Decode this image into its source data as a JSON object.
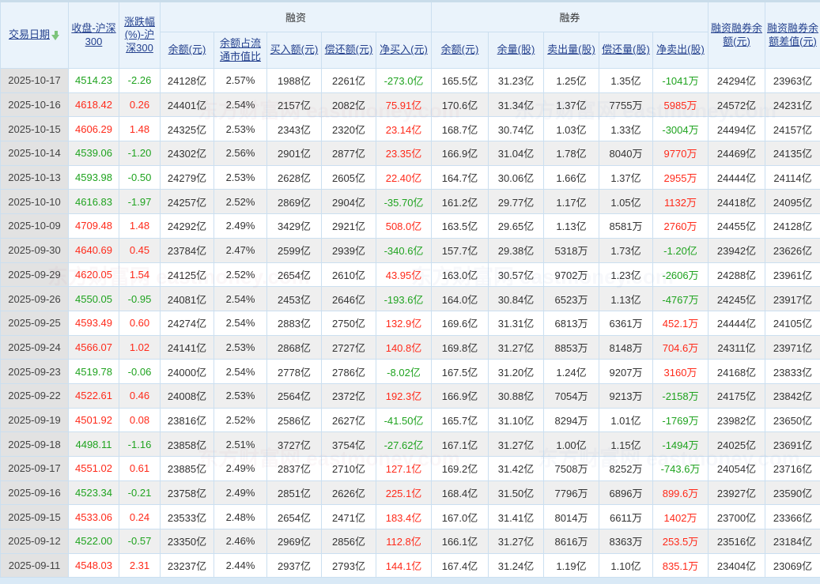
{
  "watermark": "东方财富网 eastmoney.com",
  "colors": {
    "up_red": "#ff2a1a",
    "down_green": "#1fa31f",
    "header_link": "#24418e",
    "header_bg": "#eaf3fb",
    "date_col_bg": "#e2e2e2",
    "alt_row_bg": "#efefef"
  },
  "table": {
    "groups": {
      "financing": "融资",
      "securities_lending": "融券"
    },
    "headers": {
      "date": "交易日期",
      "close": "收盘-沪深300",
      "change_pct": "涨跌幅(%)-沪深300",
      "rz_balance": "余额(元)",
      "rz_balance_ratio": "余额占流通市值比",
      "rz_buy": "买入额(元)",
      "rz_repay": "偿还额(元)",
      "rz_net_buy": "净买入(元)",
      "rq_balance": "余额(元)",
      "rq_volume": "余量(股)",
      "rq_sell_volume": "卖出量(股)",
      "rq_repay_volume": "偿还量(股)",
      "rq_net_sell": "净卖出(股)",
      "rzrq_balance": "融资融券余额(元)",
      "rzrq_balance_diff": "融资融券余额差值(元)"
    },
    "rows": [
      [
        "2025-10-17",
        "4514.23",
        "-2.26",
        "24128亿",
        "2.57%",
        "1988亿",
        "2261亿",
        "-273.0亿",
        "165.5亿",
        "31.23亿",
        "1.25亿",
        "1.35亿",
        "-1041万",
        "24294亿",
        "23963亿"
      ],
      [
        "2025-10-16",
        "4618.42",
        "0.26",
        "24401亿",
        "2.54%",
        "2157亿",
        "2082亿",
        "75.91亿",
        "170.6亿",
        "31.34亿",
        "1.37亿",
        "7755万",
        "5985万",
        "24572亿",
        "24231亿"
      ],
      [
        "2025-10-15",
        "4606.29",
        "1.48",
        "24325亿",
        "2.53%",
        "2343亿",
        "2320亿",
        "23.14亿",
        "168.7亿",
        "30.74亿",
        "1.03亿",
        "1.33亿",
        "-3004万",
        "24494亿",
        "24157亿"
      ],
      [
        "2025-10-14",
        "4539.06",
        "-1.20",
        "24302亿",
        "2.56%",
        "2901亿",
        "2877亿",
        "23.35亿",
        "166.9亿",
        "31.04亿",
        "1.78亿",
        "8040万",
        "9770万",
        "24469亿",
        "24135亿"
      ],
      [
        "2025-10-13",
        "4593.98",
        "-0.50",
        "24279亿",
        "2.53%",
        "2628亿",
        "2605亿",
        "22.40亿",
        "164.7亿",
        "30.06亿",
        "1.66亿",
        "1.37亿",
        "2955万",
        "24444亿",
        "24114亿"
      ],
      [
        "2025-10-10",
        "4616.83",
        "-1.97",
        "24257亿",
        "2.52%",
        "2869亿",
        "2904亿",
        "-35.70亿",
        "161.2亿",
        "29.77亿",
        "1.17亿",
        "1.05亿",
        "1132万",
        "24418亿",
        "24095亿"
      ],
      [
        "2025-10-09",
        "4709.48",
        "1.48",
        "24292亿",
        "2.49%",
        "3429亿",
        "2921亿",
        "508.0亿",
        "163.5亿",
        "29.65亿",
        "1.13亿",
        "8581万",
        "2760万",
        "24455亿",
        "24128亿"
      ],
      [
        "2025-09-30",
        "4640.69",
        "0.45",
        "23784亿",
        "2.47%",
        "2599亿",
        "2939亿",
        "-340.6亿",
        "157.7亿",
        "29.38亿",
        "5318万",
        "1.73亿",
        "-1.20亿",
        "23942亿",
        "23626亿"
      ],
      [
        "2025-09-29",
        "4620.05",
        "1.54",
        "24125亿",
        "2.52%",
        "2654亿",
        "2610亿",
        "43.95亿",
        "163.0亿",
        "30.57亿",
        "9702万",
        "1.23亿",
        "-2606万",
        "24288亿",
        "23961亿"
      ],
      [
        "2025-09-26",
        "4550.05",
        "-0.95",
        "24081亿",
        "2.54%",
        "2453亿",
        "2646亿",
        "-193.6亿",
        "164.0亿",
        "30.84亿",
        "6523万",
        "1.13亿",
        "-4767万",
        "24245亿",
        "23917亿"
      ],
      [
        "2025-09-25",
        "4593.49",
        "0.60",
        "24274亿",
        "2.54%",
        "2883亿",
        "2750亿",
        "132.9亿",
        "169.6亿",
        "31.31亿",
        "6813万",
        "6361万",
        "452.1万",
        "24444亿",
        "24105亿"
      ],
      [
        "2025-09-24",
        "4566.07",
        "1.02",
        "24141亿",
        "2.53%",
        "2868亿",
        "2727亿",
        "140.8亿",
        "169.8亿",
        "31.27亿",
        "8853万",
        "8148万",
        "704.6万",
        "24311亿",
        "23971亿"
      ],
      [
        "2025-09-23",
        "4519.78",
        "-0.06",
        "24000亿",
        "2.54%",
        "2778亿",
        "2786亿",
        "-8.02亿",
        "167.5亿",
        "31.20亿",
        "1.24亿",
        "9207万",
        "3160万",
        "24168亿",
        "23833亿"
      ],
      [
        "2025-09-22",
        "4522.61",
        "0.46",
        "24008亿",
        "2.53%",
        "2564亿",
        "2372亿",
        "192.3亿",
        "166.9亿",
        "30.88亿",
        "7054万",
        "9213万",
        "-2158万",
        "24175亿",
        "23842亿"
      ],
      [
        "2025-09-19",
        "4501.92",
        "0.08",
        "23816亿",
        "2.52%",
        "2586亿",
        "2627亿",
        "-41.50亿",
        "165.7亿",
        "31.10亿",
        "8294万",
        "1.01亿",
        "-1769万",
        "23982亿",
        "23650亿"
      ],
      [
        "2025-09-18",
        "4498.11",
        "-1.16",
        "23858亿",
        "2.51%",
        "3727亿",
        "3754亿",
        "-27.62亿",
        "167.1亿",
        "31.27亿",
        "1.00亿",
        "1.15亿",
        "-1494万",
        "24025亿",
        "23691亿"
      ],
      [
        "2025-09-17",
        "4551.02",
        "0.61",
        "23885亿",
        "2.49%",
        "2837亿",
        "2710亿",
        "127.1亿",
        "169.2亿",
        "31.42亿",
        "7508万",
        "8252万",
        "-743.6万",
        "24054亿",
        "23716亿"
      ],
      [
        "2025-09-16",
        "4523.34",
        "-0.21",
        "23758亿",
        "2.49%",
        "2851亿",
        "2626亿",
        "225.1亿",
        "168.4亿",
        "31.50亿",
        "7796万",
        "6896万",
        "899.6万",
        "23927亿",
        "23590亿"
      ],
      [
        "2025-09-15",
        "4533.06",
        "0.24",
        "23533亿",
        "2.48%",
        "2654亿",
        "2471亿",
        "183.4亿",
        "167.0亿",
        "31.41亿",
        "8014万",
        "6611万",
        "1402万",
        "23700亿",
        "23366亿"
      ],
      [
        "2025-09-12",
        "4522.00",
        "-0.57",
        "23350亿",
        "2.46%",
        "2969亿",
        "2856亿",
        "112.8亿",
        "166.1亿",
        "31.27亿",
        "8616万",
        "8363万",
        "253.5万",
        "23516亿",
        "23184亿"
      ],
      [
        "2025-09-11",
        "4548.03",
        "2.31",
        "23237亿",
        "2.44%",
        "2937亿",
        "2793亿",
        "144.1亿",
        "167.4亿",
        "31.24亿",
        "1.19亿",
        "1.10亿",
        "835.1万",
        "23404亿",
        "23069亿"
      ]
    ]
  }
}
